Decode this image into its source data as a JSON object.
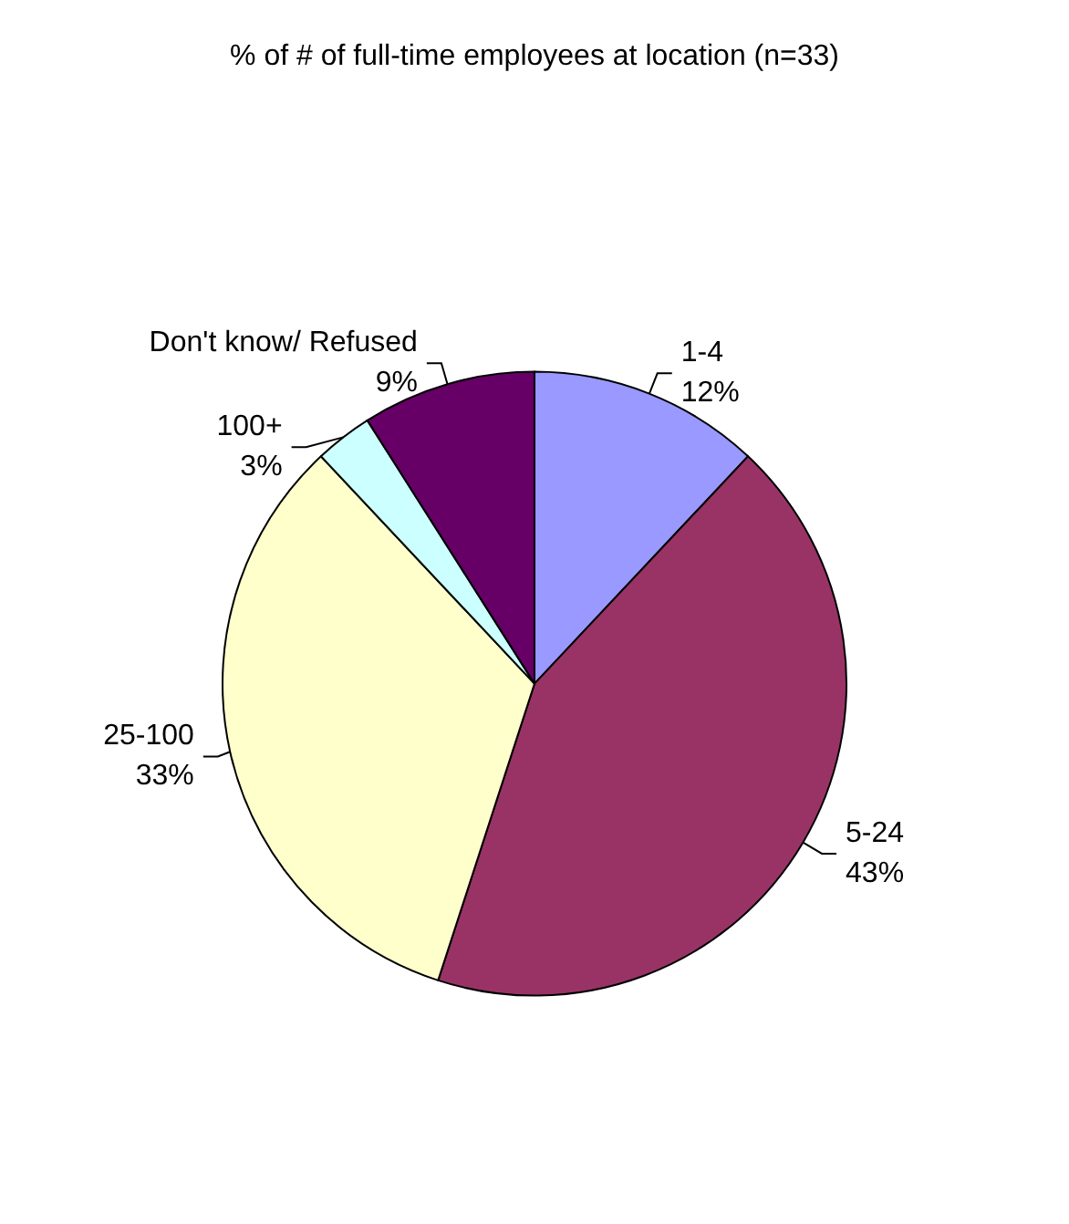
{
  "chart_data": {
    "type": "pie",
    "title": "% of # of full-time employees at location (n=33)",
    "categories": [
      "1-4",
      "5-24",
      "25-100",
      "100+",
      "Don't know/ Refused"
    ],
    "values": [
      12,
      43,
      33,
      3,
      9
    ],
    "value_labels": [
      "12%",
      "43%",
      "33%",
      "3%",
      "9%"
    ],
    "colors": [
      "#9999ff",
      "#993366",
      "#ffffcc",
      "#ccffff",
      "#660066"
    ],
    "legend": false
  }
}
